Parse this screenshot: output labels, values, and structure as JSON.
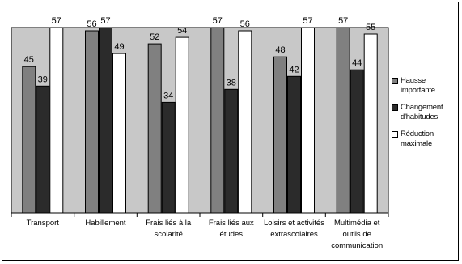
{
  "chart_data": {
    "type": "bar",
    "categories": [
      [
        "Transport"
      ],
      [
        "Habillement"
      ],
      [
        "Frais liés à la",
        "scolarité"
      ],
      [
        "Frais liés aux",
        "études"
      ],
      [
        "Loisirs et activités",
        "extrascolaires"
      ],
      [
        "Multimédia et",
        "outils de",
        "communication"
      ]
    ],
    "series": [
      {
        "name": "Hausse importante",
        "legend_lines": [
          "Hausse",
          "importante"
        ],
        "color": "#808080",
        "values": [
          45,
          56,
          52,
          57,
          48,
          57
        ]
      },
      {
        "name": "Changement d'habitudes",
        "legend_lines": [
          "Changement",
          "d'habitudes"
        ],
        "color": "#2b2b2b",
        "values": [
          39,
          57,
          34,
          38,
          42,
          44
        ]
      },
      {
        "name": "Réduction maximale",
        "legend_lines": [
          "Réduction",
          "maximale"
        ],
        "color": "#ffffff",
        "values": [
          57,
          49,
          54,
          56,
          57,
          55
        ]
      }
    ],
    "ylim": [
      0,
      57
    ],
    "grid": false,
    "plot_background": "#c8c8c8",
    "legend_position": "right"
  }
}
